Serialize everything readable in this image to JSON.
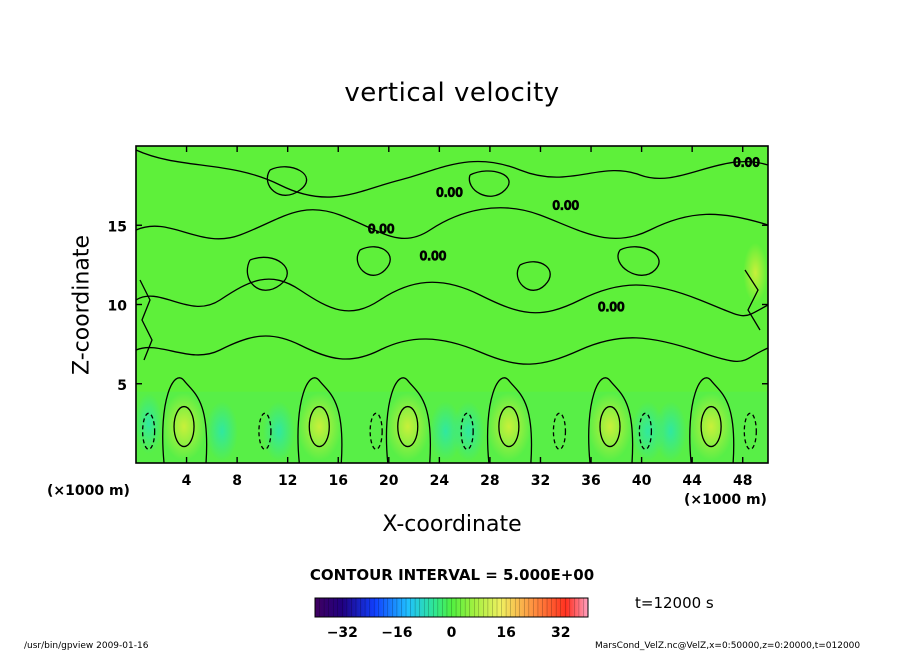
{
  "chart_data": {
    "type": "heatmap",
    "title": "vertical velocity",
    "xlabel": "X-coordinate",
    "ylabel": "Z-coordinate",
    "x_unit": "(×1000 m)",
    "y_unit": "(×1000 m)",
    "xlim": [
      0,
      50
    ],
    "ylim": [
      0,
      20
    ],
    "x_ticks": [
      4,
      8,
      12,
      16,
      20,
      24,
      28,
      32,
      36,
      40,
      44,
      48
    ],
    "y_ticks": [
      5,
      10,
      15
    ],
    "contour_interval": "CONTOUR INTERVAL = 5.000E+00",
    "contour_label": "0.00",
    "colorbar": {
      "range": [
        -40,
        40
      ],
      "ticks": [
        "−32",
        "−16",
        "0",
        "16",
        "32"
      ],
      "tick_values": [
        -32,
        -16,
        0,
        16,
        32
      ],
      "colormap": "rainbow"
    },
    "plumes_x": [
      3.8,
      14.5,
      21.5,
      29.5,
      37.5,
      45.5
    ],
    "time": "t=12000 s",
    "colors": {
      "background": "#5ef03a",
      "upward": "#aef23a",
      "downward": "#3ce88a",
      "line": "#000000"
    }
  },
  "footer": {
    "left": "/usr/bin/gpview   2009-01-16",
    "right": "MarsCond_VelZ.nc@VelZ,x=0:50000,z=0:20000,t=012000"
  }
}
